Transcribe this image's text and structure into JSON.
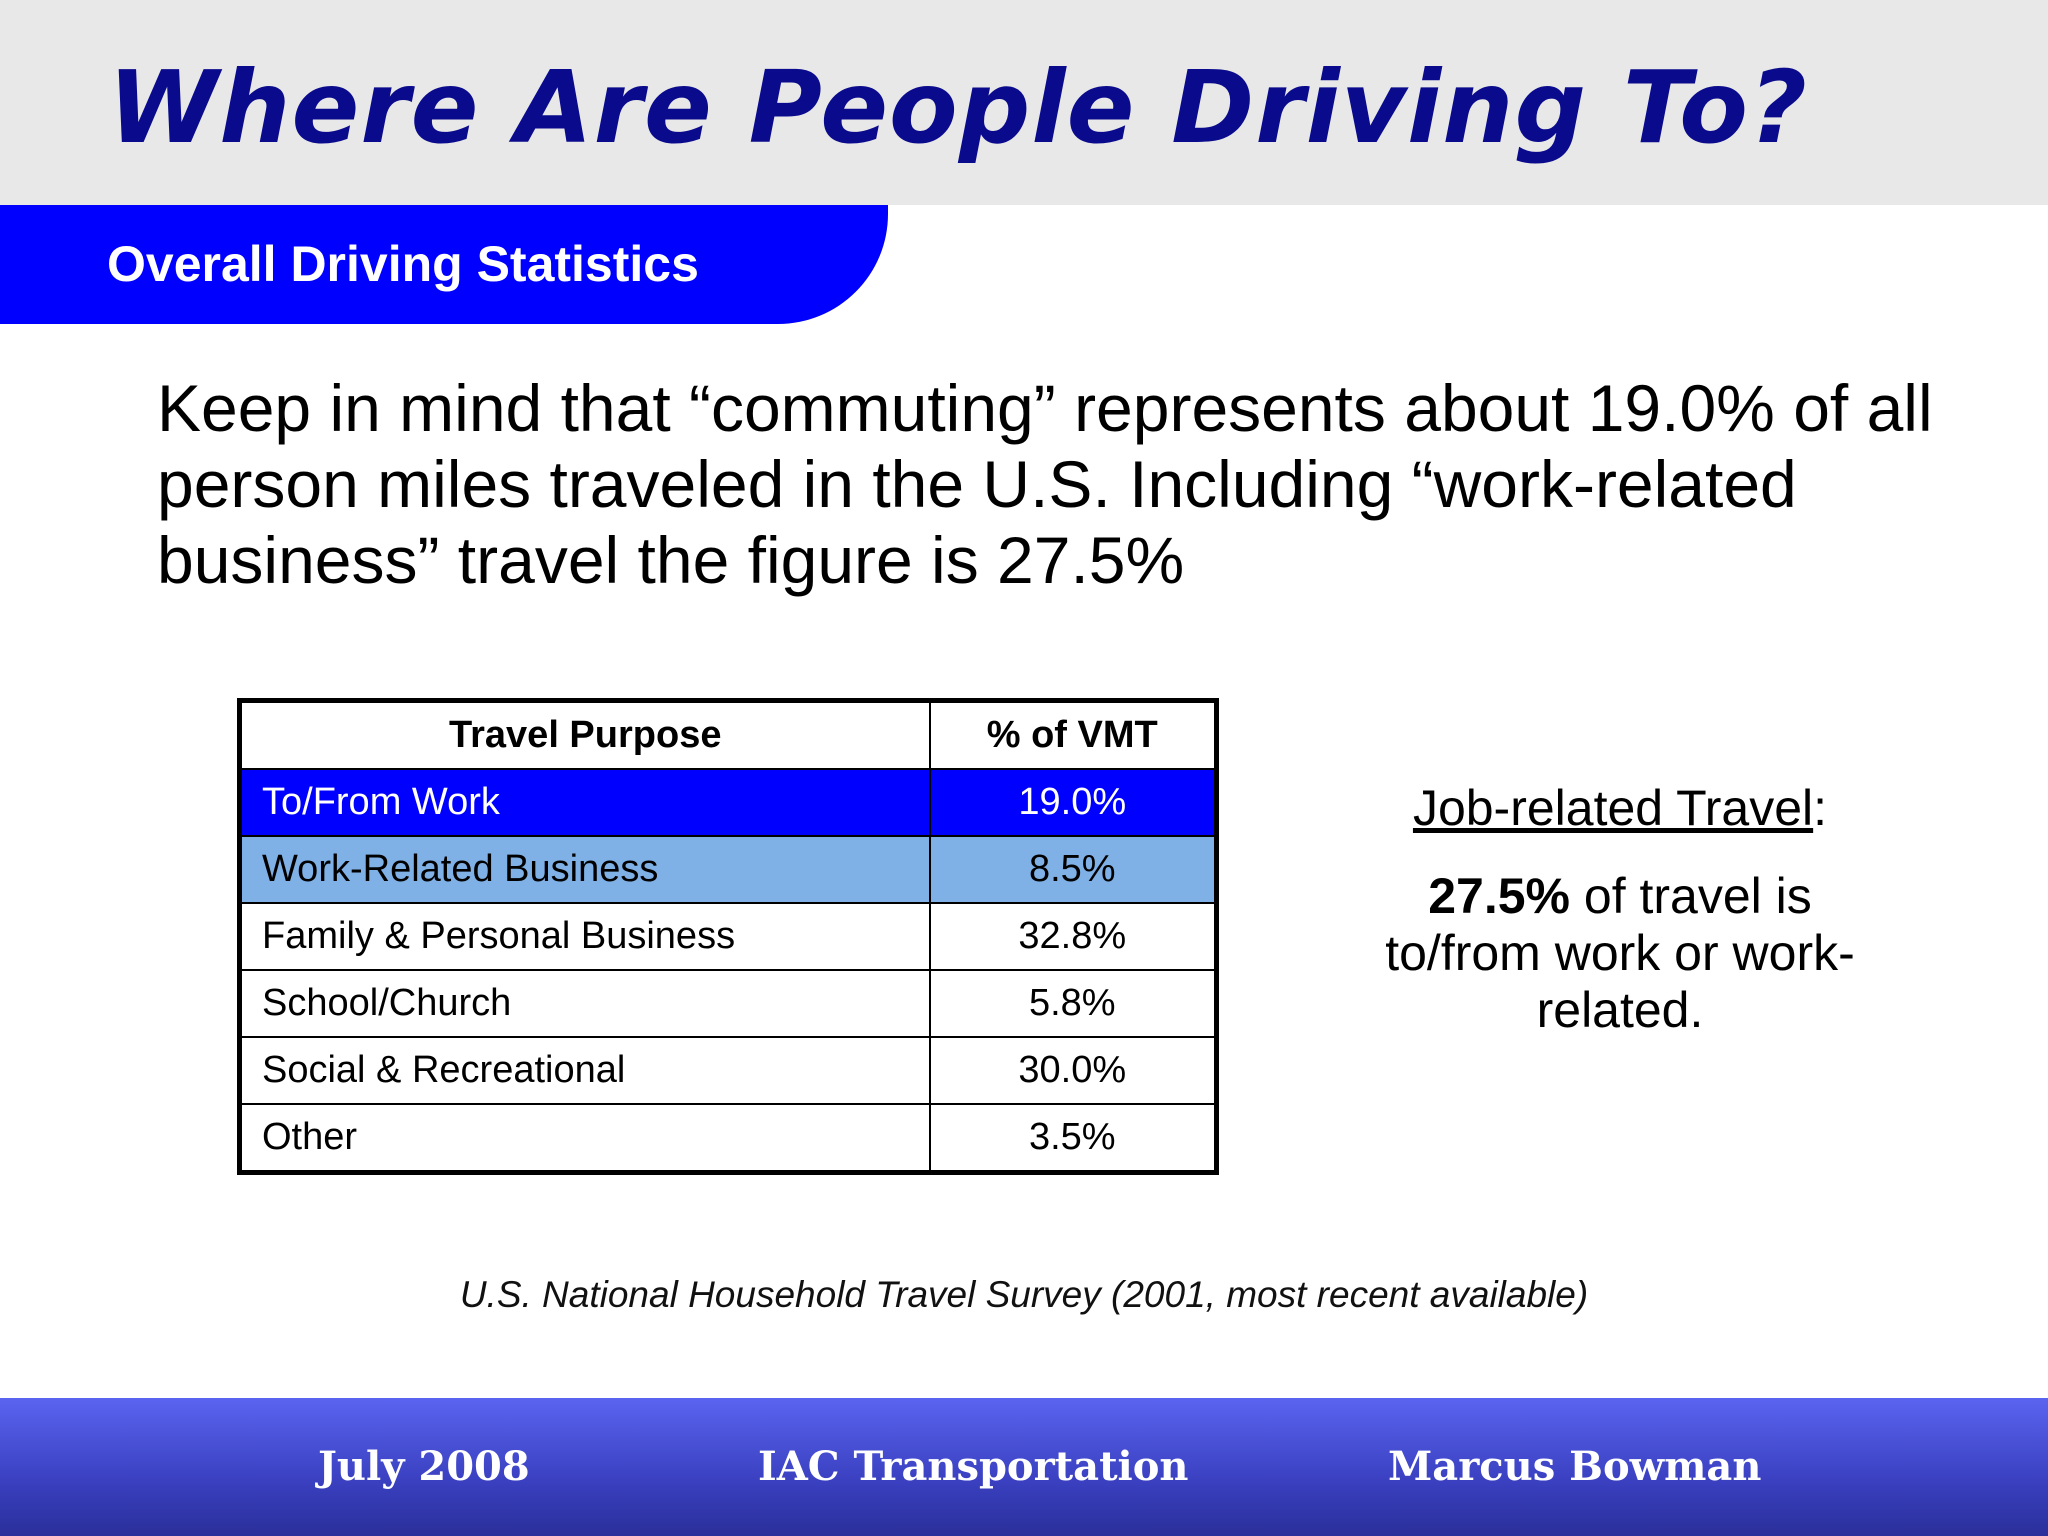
{
  "title": "Where Are People Driving To?",
  "subtitle": "Overall Driving Statistics",
  "intro": "Keep in mind that “commuting” represents about 19.0% of all person miles traveled in the U.S. Including “work-related business” travel the figure is 27.5%",
  "table": {
    "headers": [
      "Travel Purpose",
      "% of VMT"
    ],
    "rows": [
      {
        "purpose": "To/From Work",
        "value": "19.0%"
      },
      {
        "purpose": "Work-Related Business",
        "value": "8.5%"
      },
      {
        "purpose": "Family & Personal Business",
        "value": "32.8%"
      },
      {
        "purpose": "School/Church",
        "value": "5.8%"
      },
      {
        "purpose": "Social & Recreational",
        "value": "30.0%"
      },
      {
        "purpose": "Other",
        "value": "3.5%"
      }
    ],
    "highlight_colors": {
      "primary": "#0000ff",
      "secondary": "#7fb0e6"
    }
  },
  "side_note": {
    "heading": "Job-related Travel",
    "heading_suffix": ":",
    "emphasis": "27.5%",
    "text": " of travel is to/from work or work-related."
  },
  "source": "U.S. National Household Travel Survey (2001, most recent available)",
  "footer": {
    "date": "July 2008",
    "organization": "IAC Transportation",
    "author": "Marcus Bowman"
  },
  "colors": {
    "title": "#0a0a8c",
    "accent": "#0000ff",
    "title_band": "#e8e8e8"
  }
}
